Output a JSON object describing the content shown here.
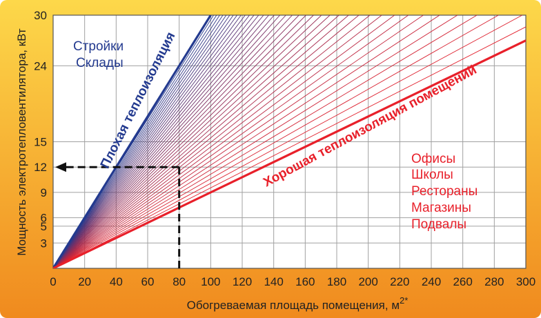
{
  "chart_data": {
    "type": "line",
    "xlabel": "Обогреваемая площадь помещения, м",
    "xlabel_superscript": "2*",
    "ylabel": "Мощность электротепловентилятора, кВт",
    "x_ticks": [
      0,
      20,
      40,
      60,
      80,
      100,
      120,
      140,
      160,
      180,
      200,
      220,
      240,
      260,
      280,
      300
    ],
    "y_ticks": [
      3,
      5,
      6,
      9,
      12,
      15,
      24,
      30
    ],
    "xlim": [
      0,
      300
    ],
    "ylim": [
      0,
      30
    ],
    "grid": true,
    "fan_lines": {
      "count": 40,
      "origin": [
        0,
        0
      ],
      "slope_min_kw_per_m2": 0.09,
      "slope_max_kw_per_m2": 0.3,
      "color_low_slope": "#e8202a",
      "color_high_slope": "#233a8f"
    },
    "series": [
      {
        "name": "Плохая теплоизоляция",
        "x": [
          0,
          100
        ],
        "y": [
          0,
          30
        ],
        "color": "#233a8f"
      },
      {
        "name": "Хорошая теплоизоляция помещений",
        "x": [
          0,
          300
        ],
        "y": [
          0,
          27
        ],
        "color": "#e8202a"
      }
    ],
    "example": {
      "x": 80,
      "y": 12
    },
    "annotations": {
      "poor_insulation": "Плохая теплоизоляция",
      "good_insulation": "Хорошая теплоизоляция помещений",
      "blue_group": [
        "Стройки",
        "Склады"
      ],
      "red_group": [
        "Офисы",
        "Школы",
        "Рестораны",
        "Магазины",
        "Подвалы"
      ]
    }
  },
  "colors": {
    "frame_top": "#fdd84a",
    "frame_bottom": "#f08a1e",
    "plot_bg": "#ffffff",
    "grid": "#a0a0a0",
    "blue": "#233a8f",
    "red": "#e8202a",
    "dashed": "#111111"
  }
}
